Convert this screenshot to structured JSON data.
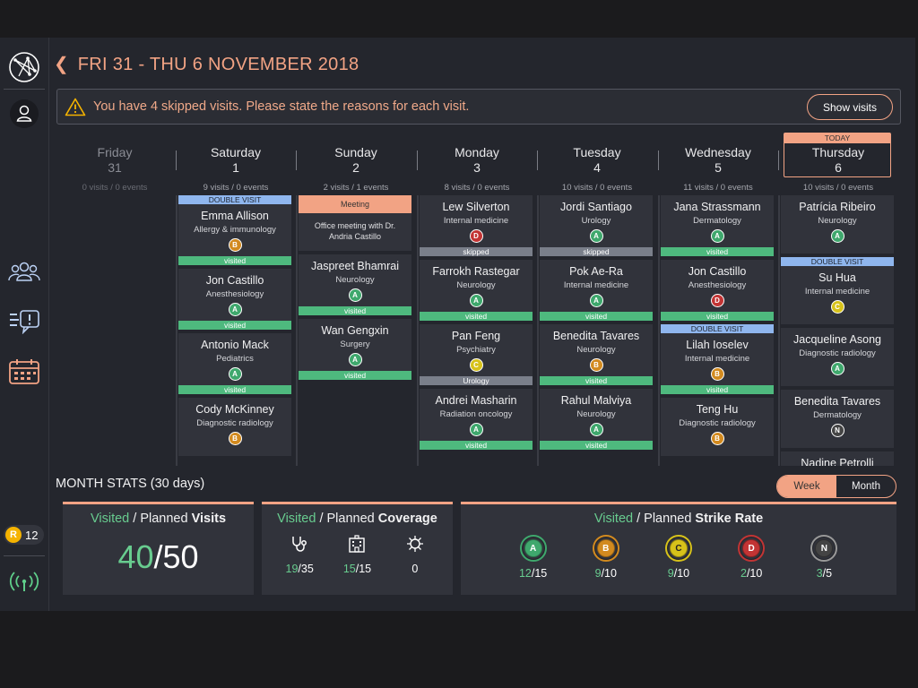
{
  "header": {
    "back_icon": "chevron-left-icon",
    "title": "FRI 31 - THU 6 NOVEMBER 2018"
  },
  "alert": {
    "icon": "warning-icon",
    "message": "You have 4 skipped visits. Please state the reasons for each visit.",
    "button": "Show visits"
  },
  "sidebar": {
    "badge_letter": "R",
    "badge_count": "12"
  },
  "days": [
    {
      "name": "Friday",
      "date": "31",
      "counts": "0 visits / 0 events",
      "past": true
    },
    {
      "name": "Saturday",
      "date": "1",
      "counts": "9 visits / 0 events"
    },
    {
      "name": "Sunday",
      "date": "2",
      "counts": "2 visits / 1 events"
    },
    {
      "name": "Monday",
      "date": "3",
      "counts": "8 visits / 0 events"
    },
    {
      "name": "Tuesday",
      "date": "4",
      "counts": "10 visits / 0 events"
    },
    {
      "name": "Wednesday",
      "date": "5",
      "counts": "11 visits / 0 events"
    },
    {
      "name": "Thursday",
      "date": "6",
      "counts": "10 visits / 0 events",
      "today_label": "TODAY"
    }
  ],
  "columns": [
    [],
    [
      {
        "top": "DOUBLE VISIT",
        "name": "Emma Allison",
        "specialty": "Allergy & immunology",
        "badge": "B",
        "status": "visited"
      },
      {
        "name": "Jon Castillo",
        "specialty": "Anesthesiology",
        "badge": "A",
        "status": "visited"
      },
      {
        "name": "Antonio Mack",
        "specialty": "Pediatrics",
        "badge": "A",
        "status": "visited"
      },
      {
        "name": "Cody McKinney",
        "specialty": "Diagnostic radiology",
        "badge": "B"
      }
    ],
    [
      {
        "meeting": "Meeting",
        "text": "Office meeting with Dr. Andria Castillo"
      },
      {
        "name": "Jaspreet Bhamrai",
        "specialty": "Neurology",
        "badge": "A",
        "status": "visited"
      },
      {
        "name": "Wan Gengxin",
        "specialty": "Surgery",
        "badge": "A",
        "status": "visited"
      }
    ],
    [
      {
        "name": "Lew Silverton",
        "specialty": "Internal medicine",
        "badge": "D",
        "status": "skipped"
      },
      {
        "name": "Farrokh Rastegar",
        "specialty": "Neurology",
        "badge": "A",
        "status": "visited"
      },
      {
        "name": "Pan Feng",
        "specialty": "Psychiatry",
        "badge": "C",
        "status": "Urology",
        "status_class": "skipped"
      },
      {
        "name": "Andrei Masharin",
        "specialty": "Radiation oncology",
        "badge": "A",
        "status": "visited"
      }
    ],
    [
      {
        "name": "Jordi Santiago",
        "specialty": "Urology",
        "badge": "A",
        "status": "skipped"
      },
      {
        "name": "Pok Ae-Ra",
        "specialty": "Internal medicine",
        "badge": "A",
        "status": "visited"
      },
      {
        "name": "Benedita Tavares",
        "specialty": "Neurology",
        "badge": "B",
        "status": "visited"
      },
      {
        "name": "Rahul Malviya",
        "specialty": "Neurology",
        "badge": "A",
        "status": "visited"
      }
    ],
    [
      {
        "name": "Jana Strassmann",
        "specialty": "Dermatology",
        "badge": "A",
        "status": "visited"
      },
      {
        "name": "Jon Castillo",
        "specialty": "Anesthesiology",
        "badge": "D",
        "status": "visited"
      },
      {
        "top": "DOUBLE VISIT",
        "name": "Lilah Ioselev",
        "specialty": "Internal medicine",
        "badge": "B",
        "status": "visited"
      },
      {
        "name": "Teng Hu",
        "specialty": "Diagnostic radiology",
        "badge": "B"
      }
    ],
    [
      {
        "name": "Patrícia Ribeiro",
        "specialty": "Neurology",
        "badge": "A"
      },
      {
        "top": "DOUBLE VISIT",
        "name": "Su Hua",
        "specialty": "Internal medicine",
        "badge": "C"
      },
      {
        "name": "Jacqueline Asong",
        "specialty": "Diagnostic radiology",
        "badge": "A"
      },
      {
        "name": "Benedita Tavares",
        "specialty": "Dermatology",
        "badge": "N"
      },
      {
        "name": "Nadine Petrolli",
        "specialty": ""
      }
    ]
  ],
  "stats": {
    "title": "MONTH STATS (30 days)",
    "toggle": {
      "week": "Week",
      "month": "Month",
      "active": "week"
    },
    "visits": {
      "visited_word": "Visited",
      "planned_word": " / Planned ",
      "bold": "Visits",
      "visited": "40",
      "slash": "/",
      "planned": "50"
    },
    "coverage": {
      "visited_word": "Visited",
      "planned_word": " / Planned ",
      "bold": "Coverage",
      "items": [
        {
          "icon": "stethoscope-icon",
          "visited": "19",
          "planned": "/35"
        },
        {
          "icon": "hospital-icon",
          "visited": "15",
          "planned": "/15"
        },
        {
          "icon": "virus-icon",
          "visited": "",
          "planned": "0"
        }
      ]
    },
    "strike": {
      "visited_word": "Visited",
      "planned_word": " / Planned ",
      "bold": "Strike Rate",
      "items": [
        {
          "grade": "A",
          "visited": "12",
          "planned": "/15",
          "color": "#3fa86d"
        },
        {
          "grade": "B",
          "visited": "9",
          "planned": "/10",
          "color": "#d28a1f"
        },
        {
          "grade": "C",
          "visited": "9",
          "planned": "/10",
          "color": "#d7c21a"
        },
        {
          "grade": "D",
          "visited": "2",
          "planned": "/10",
          "color": "#c23434"
        },
        {
          "grade": "N",
          "visited": "3",
          "planned": "/5",
          "color": "#999999"
        }
      ]
    }
  }
}
